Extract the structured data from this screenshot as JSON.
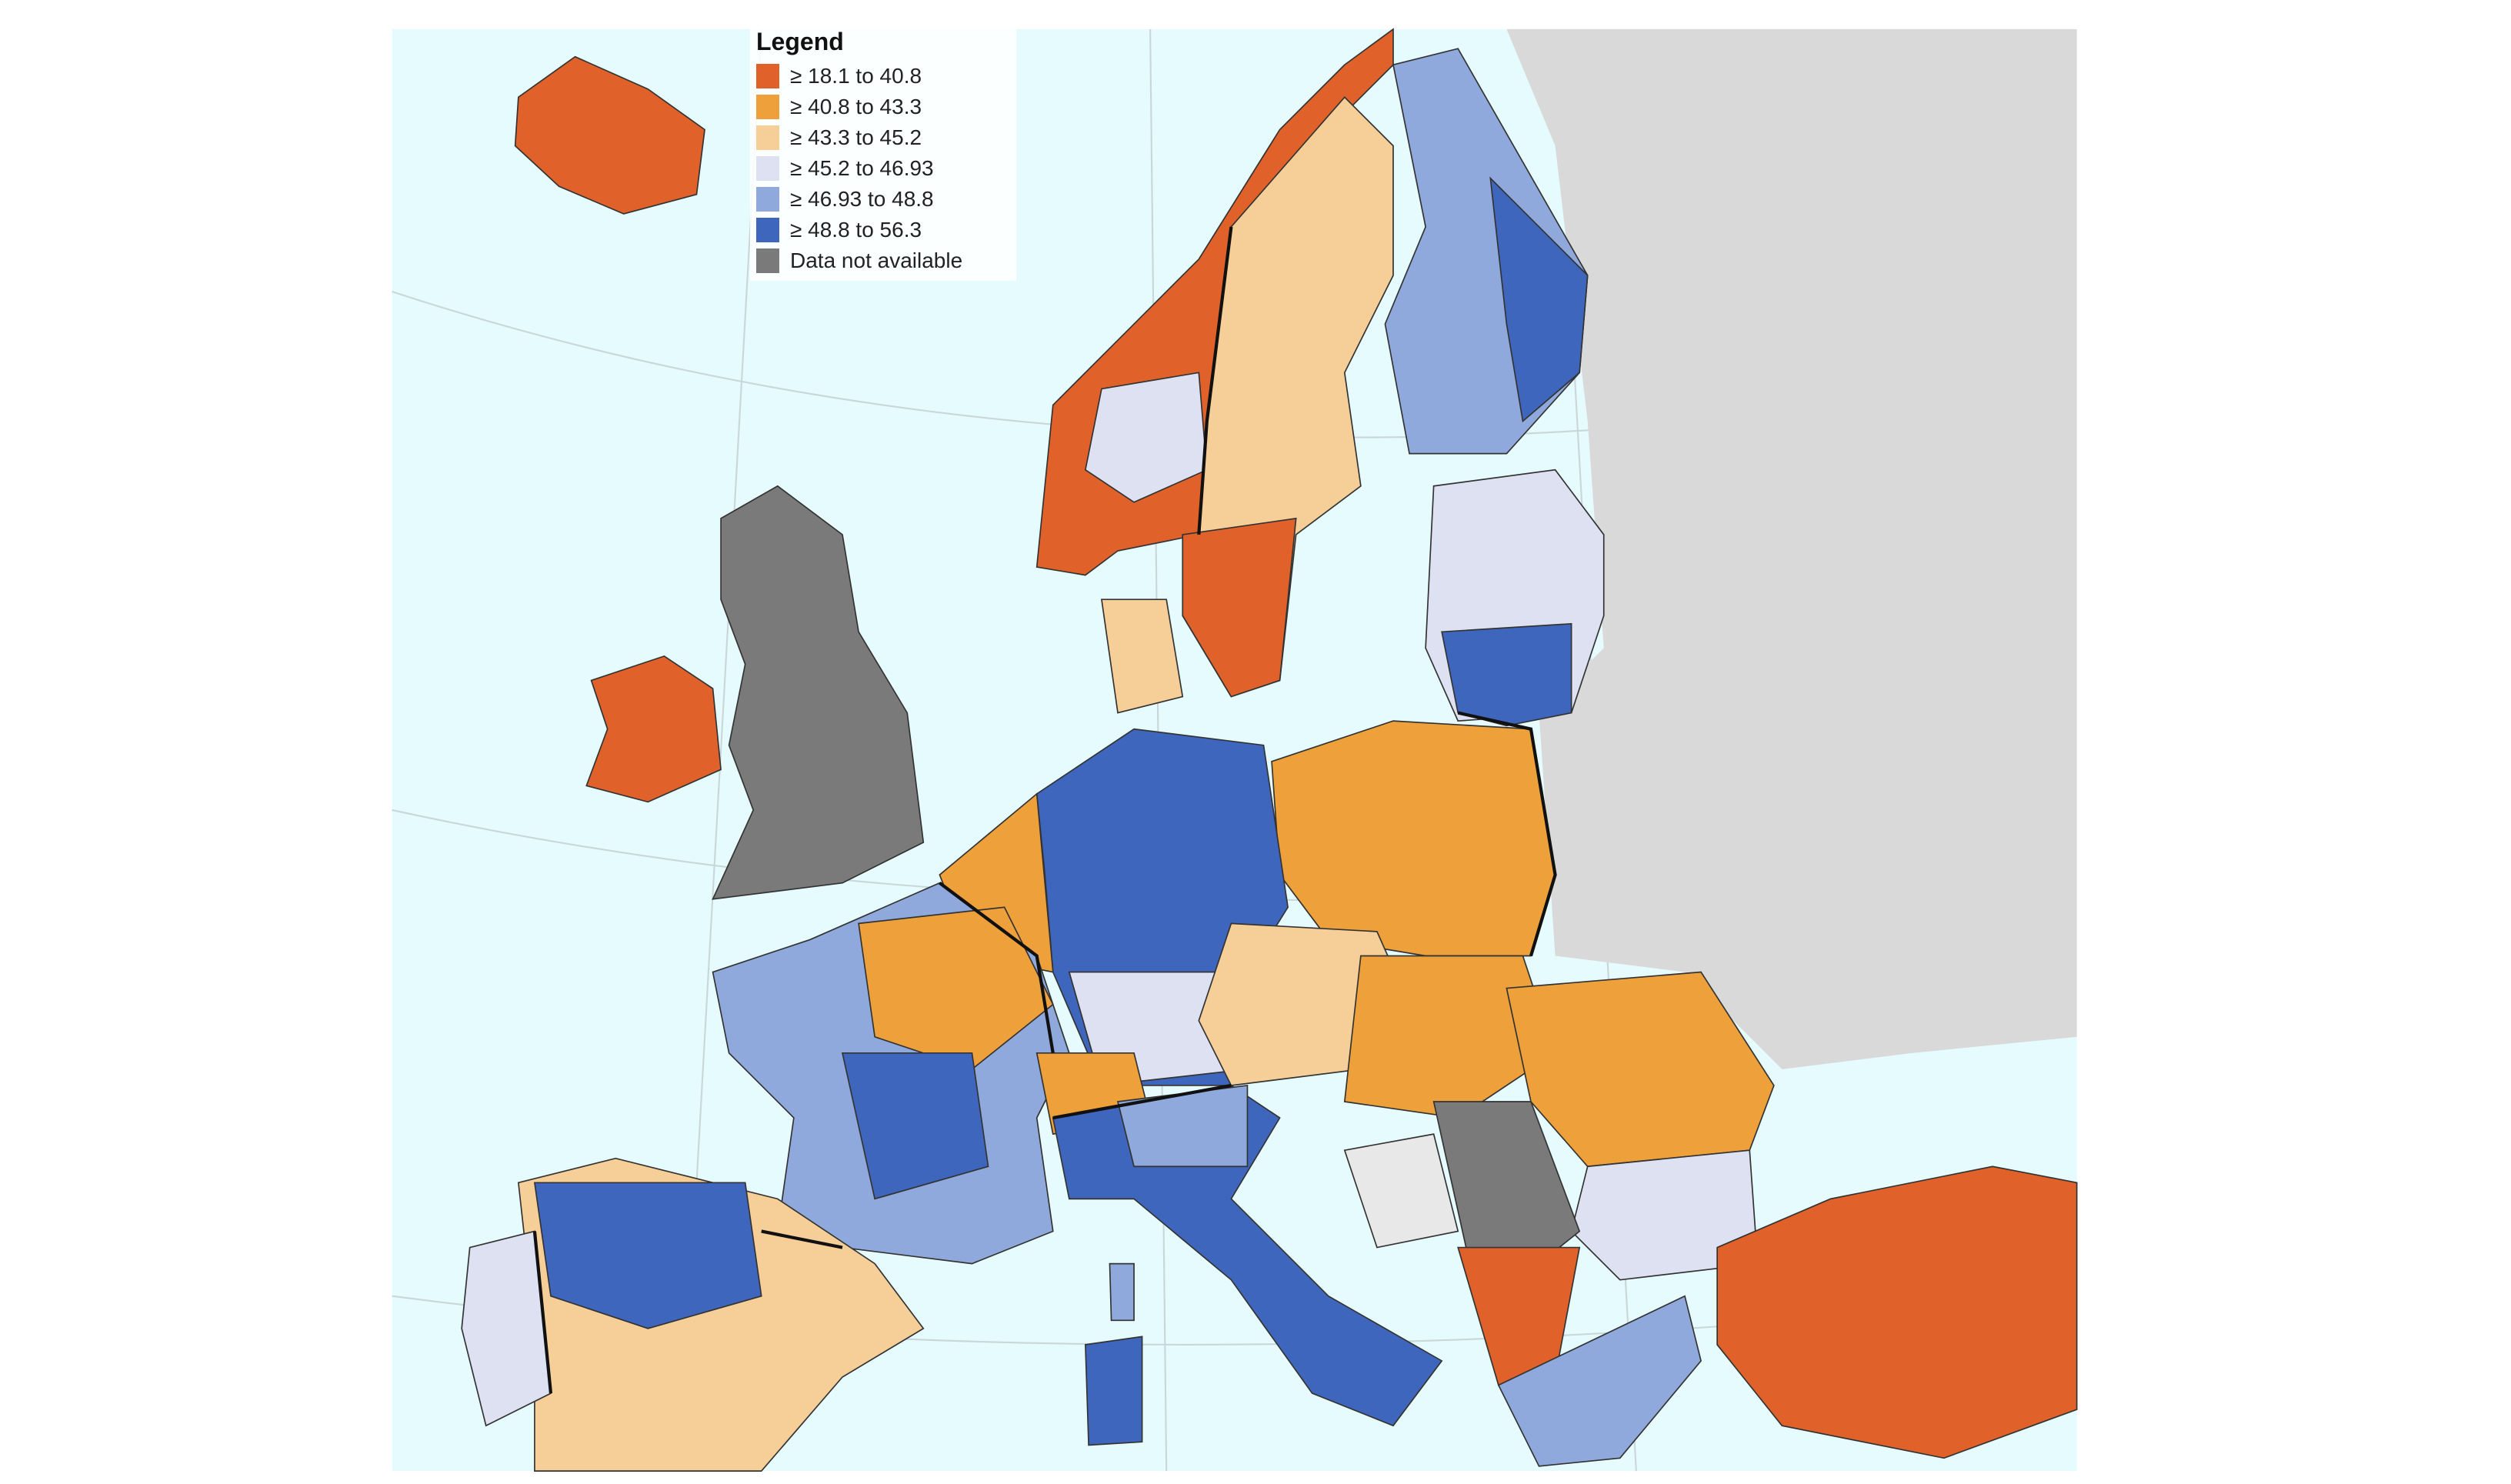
{
  "legend": {
    "title": "Legend",
    "items": [
      {
        "label": "≥ 18.1 to 40.8",
        "color": "#e0622a"
      },
      {
        "label": "≥ 40.8 to 43.3",
        "color": "#eea13a"
      },
      {
        "label": "≥ 43.3 to 45.2",
        "color": "#f6cf98"
      },
      {
        "label": "≥ 45.2 to 46.93",
        "color": "#dde1f2"
      },
      {
        "label": "≥ 46.93 to 48.8",
        "color": "#8fa9dc"
      },
      {
        "label": "≥ 48.8 to 56.3",
        "color": "#3f66bd"
      },
      {
        "label": "Data not available",
        "color": "#7a7a7a"
      }
    ]
  },
  "colors": {
    "sea": "#e6fbfd",
    "non_covered_land": "#d9d9d9",
    "border": "#111111"
  }
}
